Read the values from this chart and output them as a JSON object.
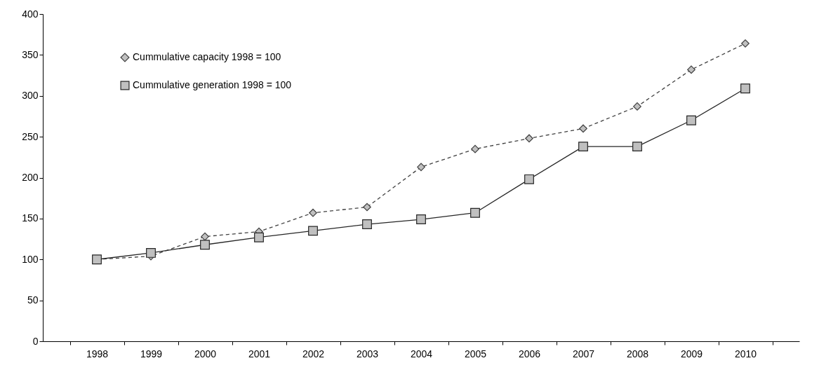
{
  "chart_data": {
    "type": "line",
    "categories": [
      "1998",
      "1999",
      "2000",
      "2001",
      "2002",
      "2003",
      "2004",
      "2005",
      "2006",
      "2007",
      "2008",
      "2009",
      "2010"
    ],
    "series": [
      {
        "name": "Cummulative capacity 1998 = 100",
        "color": "#404040",
        "marker": "diamond",
        "line_style": "dashed",
        "values": [
          100,
          104,
          128,
          134,
          157,
          164,
          213,
          235,
          248,
          260,
          287,
          332,
          364
        ]
      },
      {
        "name": "Cummulative generation 1998 = 100",
        "color": "#262626",
        "marker": "square",
        "line_style": "solid",
        "values": [
          100,
          108,
          118,
          127,
          135,
          143,
          149,
          157,
          198,
          238,
          238,
          270,
          309
        ]
      }
    ],
    "ylim": [
      0,
      400
    ],
    "yticks": [
      0,
      50,
      100,
      150,
      200,
      250,
      300,
      350,
      400
    ],
    "grid": false,
    "legend": "top left"
  }
}
